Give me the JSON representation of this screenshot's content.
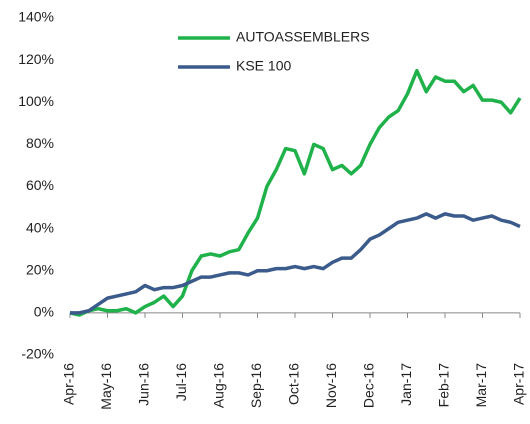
{
  "chart_data": {
    "type": "line",
    "x": [
      0,
      0.25,
      0.5,
      0.75,
      1,
      1.25,
      1.5,
      1.75,
      2,
      2.25,
      2.5,
      2.75,
      3,
      3.25,
      3.5,
      3.75,
      4,
      4.25,
      4.5,
      4.75,
      5,
      5.25,
      5.5,
      5.75,
      6,
      6.25,
      6.5,
      6.75,
      7,
      7.25,
      7.5,
      7.75,
      8,
      8.25,
      8.5,
      8.75,
      9,
      9.25,
      9.5,
      9.75,
      10,
      10.25,
      10.5,
      10.75,
      11,
      11.25,
      11.5,
      11.75,
      12
    ],
    "series": [
      {
        "name": "AUTOASSEMBLERS",
        "color": "#1fb24a",
        "values": [
          0,
          -1,
          1,
          2,
          1,
          1,
          2,
          0,
          3,
          5,
          8,
          3,
          8,
          20,
          27,
          28,
          27,
          29,
          30,
          38,
          45,
          60,
          68,
          78,
          77,
          66,
          80,
          78,
          68,
          70,
          66,
          70,
          80,
          88,
          93,
          96,
          104,
          115,
          105,
          112,
          110,
          110,
          105,
          108,
          101,
          101,
          100,
          95,
          102
        ]
      },
      {
        "name": "KSE 100",
        "color": "#3b5b8c",
        "values": [
          0,
          0,
          1,
          4,
          7,
          8,
          9,
          10,
          13,
          11,
          12,
          12,
          13,
          15,
          17,
          17,
          18,
          19,
          19,
          18,
          20,
          20,
          21,
          21,
          22,
          21,
          22,
          21,
          24,
          26,
          26,
          30,
          35,
          37,
          40,
          43,
          44,
          45,
          47,
          45,
          47,
          46,
          46,
          44,
          45,
          46,
          44,
          43,
          41
        ]
      }
    ],
    "xlim": [
      0,
      12
    ],
    "xticks": [
      {
        "value": 0,
        "label": "Apr-16"
      },
      {
        "value": 1,
        "label": "May-16"
      },
      {
        "value": 2,
        "label": "Jun-16"
      },
      {
        "value": 3,
        "label": "Jul-16"
      },
      {
        "value": 4,
        "label": "Aug-16"
      },
      {
        "value": 5,
        "label": "Sep-16"
      },
      {
        "value": 6,
        "label": "Oct-16"
      },
      {
        "value": 7,
        "label": "Nov-16"
      },
      {
        "value": 8,
        "label": "Dec-16"
      },
      {
        "value": 9,
        "label": "Jan-17"
      },
      {
        "value": 10,
        "label": "Feb-17"
      },
      {
        "value": 11,
        "label": "Mar-17"
      },
      {
        "value": 12,
        "label": "Apr-17"
      }
    ],
    "ylim": [
      -20,
      140
    ],
    "yticks": [
      {
        "value": -20,
        "label": "-20%"
      },
      {
        "value": 0,
        "label": "0%"
      },
      {
        "value": 20,
        "label": "20%"
      },
      {
        "value": 40,
        "label": "40%"
      },
      {
        "value": 60,
        "label": "60%"
      },
      {
        "value": 80,
        "label": "80%"
      },
      {
        "value": 100,
        "label": "100%"
      },
      {
        "value": 120,
        "label": "120%"
      },
      {
        "value": 140,
        "label": "140%"
      }
    ],
    "grid": false,
    "legend": "top"
  }
}
